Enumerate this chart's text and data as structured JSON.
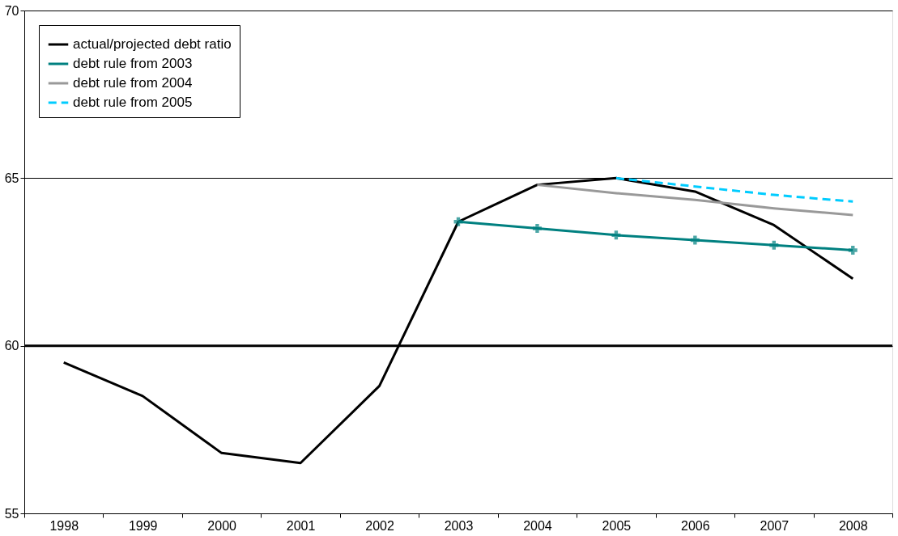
{
  "chart_data": {
    "type": "line",
    "categories": [
      "1998",
      "1999",
      "2000",
      "2001",
      "2002",
      "2003",
      "2004",
      "2005",
      "2006",
      "2007",
      "2008"
    ],
    "ylim": [
      55,
      70
    ],
    "yticks": [
      55,
      60,
      65,
      70
    ],
    "grid": "y",
    "legend": "top left",
    "series": [
      {
        "name": "actual/projected debt ratio",
        "color": "#000000",
        "line_style": "solid",
        "marker": "none",
        "values": [
          59.5,
          58.5,
          56.8,
          56.5,
          58.8,
          63.7,
          64.8,
          65.0,
          64.6,
          63.6,
          62.0
        ]
      },
      {
        "name": "debt rule from 2003",
        "color": "#008080",
        "line_style": "solid",
        "marker": "cross",
        "values": [
          null,
          null,
          null,
          null,
          null,
          63.7,
          63.5,
          63.3,
          63.15,
          63.0,
          62.85
        ]
      },
      {
        "name": "debt rule from 2004",
        "color": "#999999",
        "line_style": "solid",
        "marker": "none",
        "values": [
          null,
          null,
          null,
          null,
          null,
          null,
          64.8,
          64.55,
          64.35,
          64.1,
          63.9
        ]
      },
      {
        "name": "debt rule from 2005",
        "color": "#00ccff",
        "line_style": "dashed",
        "marker": "none",
        "values": [
          null,
          null,
          null,
          null,
          null,
          null,
          null,
          65.0,
          64.75,
          64.5,
          64.3
        ]
      }
    ],
    "ref_lines": [
      {
        "axis": "y",
        "value": 60,
        "color": "#000000",
        "line_style": "solid"
      }
    ]
  }
}
